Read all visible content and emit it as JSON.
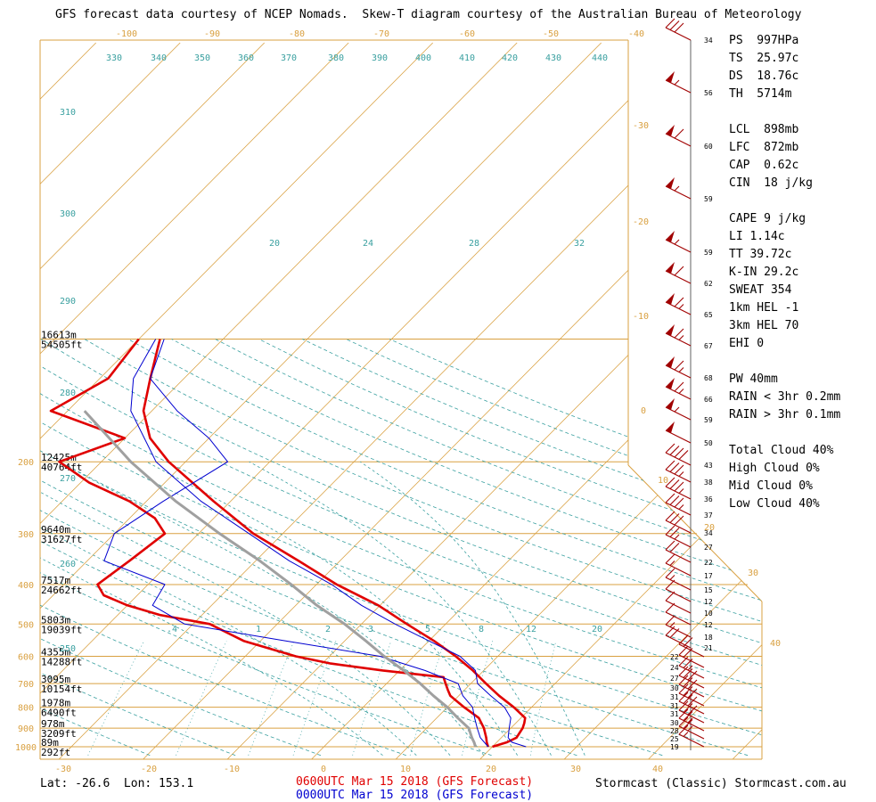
{
  "header": "GFS forecast data courtesy of NCEP Nomads.  Skew-T diagram courtesy of the Australian Bureau of Meteorology",
  "colors": {
    "grid": "#d9a040",
    "dashed": "#3aa0a0",
    "temp_now": "#e00000",
    "temp_prev": "#0000d0",
    "parcel": "#a0a0a0"
  },
  "chart_data": {
    "type": "line",
    "title": "",
    "xlabel": "",
    "ylabel": "",
    "x_ticks_bottom": [
      "-30",
      "-20",
      "-10",
      "0",
      "10",
      "20",
      "30",
      "40"
    ],
    "x_ticks_top": [
      "-100",
      "-90",
      "-80",
      "-70",
      "-60",
      "-50",
      "-40"
    ],
    "pressure_ticks": [
      "200",
      "300",
      "400",
      "500",
      "600",
      "700",
      "800",
      "900",
      "1000"
    ],
    "skewed_ticks_right": [
      "-30",
      "-20",
      "-10",
      "0",
      "10",
      "20",
      "30",
      "40"
    ],
    "theta_labels": [
      "330",
      "340",
      "350",
      "360",
      "370",
      "380",
      "390",
      "400",
      "410",
      "420",
      "430",
      "440",
      "310",
      "300",
      "290",
      "280",
      "270",
      "260",
      "250"
    ],
    "theta_e_labels": [
      "20",
      "24",
      "28",
      "32"
    ],
    "mixing_ratio_labels": [
      ".4",
      "1",
      "2",
      "3",
      "5",
      "8",
      "12",
      "20"
    ],
    "height_labels": [
      {
        "p": 100,
        "m": "16613m",
        "ft": "54505ft"
      },
      {
        "p": 200,
        "m": "12425m",
        "ft": "40764ft"
      },
      {
        "p": 300,
        "m": "9640m",
        "ft": "31627ft"
      },
      {
        "p": 400,
        "m": "7517m",
        "ft": "24662ft"
      },
      {
        "p": 500,
        "m": "5803m",
        "ft": "19039ft"
      },
      {
        "p": 600,
        "m": "4355m",
        "ft": "14288ft"
      },
      {
        "p": 700,
        "m": "3095m",
        "ft": "10154ft"
      },
      {
        "p": 800,
        "m": "1978m",
        "ft": "6490ft"
      },
      {
        "p": 900,
        "m": "978m",
        "ft": "3209ft"
      },
      {
        "p": 1000,
        "m": "89m",
        "ft": "292ft"
      }
    ],
    "wind_speeds": [
      "34",
      "56",
      "60",
      "59",
      "59",
      "62",
      "65",
      "67",
      "68",
      "66",
      "59",
      "50",
      "43",
      "38",
      "36",
      "37",
      "34",
      "27",
      "22",
      "17",
      "15",
      "12",
      "10",
      "12",
      "18",
      "21",
      "22",
      "24",
      "27",
      "30",
      "31",
      "31",
      "31",
      "30",
      "28",
      "25",
      "19"
    ],
    "series": [
      {
        "name": "0600UTC Mar 15 2018 (GFS Forecast)",
        "kind": "temperature",
        "color": "#e00000",
        "points": [
          [
            1000,
            20.0
          ],
          [
            975,
            21.2
          ],
          [
            950,
            21.8
          ],
          [
            925,
            21.6
          ],
          [
            900,
            21.4
          ],
          [
            875,
            21.0
          ],
          [
            850,
            20.5
          ],
          [
            800,
            17.9
          ],
          [
            750,
            14.8
          ],
          [
            700,
            11.8
          ],
          [
            650,
            8.7
          ],
          [
            600,
            5.0
          ],
          [
            550,
            0.6
          ],
          [
            500,
            -4.6
          ],
          [
            450,
            -10.2
          ],
          [
            400,
            -17.6
          ],
          [
            350,
            -24.9
          ],
          [
            300,
            -33.5
          ],
          [
            250,
            -42.0
          ],
          [
            200,
            -52.0
          ],
          [
            175,
            -57.0
          ],
          [
            150,
            -61.0
          ],
          [
            125,
            -64.0
          ],
          [
            100,
            -67.5
          ]
        ]
      },
      {
        "name": "0600UTC Mar 15 2018 (GFS Forecast)",
        "kind": "dewpoint",
        "color": "#e00000",
        "points": [
          [
            1000,
            19.5
          ],
          [
            975,
            18.8
          ],
          [
            950,
            18.2
          ],
          [
            900,
            16.8
          ],
          [
            850,
            15.0
          ],
          [
            800,
            12.0
          ],
          [
            750,
            9.0
          ],
          [
            725,
            8.0
          ],
          [
            700,
            7.0
          ],
          [
            675,
            6.0
          ],
          [
            650,
            -2.0
          ],
          [
            625,
            -9.0
          ],
          [
            600,
            -14.0
          ],
          [
            550,
            -22.0
          ],
          [
            500,
            -28.0
          ],
          [
            475,
            -35.0
          ],
          [
            450,
            -40.0
          ],
          [
            425,
            -44.0
          ],
          [
            400,
            -46.0
          ],
          [
            350,
            -45.0
          ],
          [
            300,
            -44.0
          ],
          [
            275,
            -47.0
          ],
          [
            250,
            -52.0
          ],
          [
            225,
            -59.0
          ],
          [
            200,
            -65.0
          ],
          [
            175,
            -60.0
          ],
          [
            150,
            -72.0
          ],
          [
            125,
            -69.0
          ],
          [
            100,
            -70.0
          ]
        ]
      },
      {
        "name": "0000UTC Mar 15 2018 (GFS Forecast)",
        "kind": "temperature",
        "color": "#0000d0",
        "points": [
          [
            1000,
            24.0
          ],
          [
            975,
            21.8
          ],
          [
            950,
            20.8
          ],
          [
            900,
            19.8
          ],
          [
            850,
            18.8
          ],
          [
            800,
            16.8
          ],
          [
            750,
            13.8
          ],
          [
            700,
            10.8
          ],
          [
            650,
            9.0
          ],
          [
            600,
            5.5
          ],
          [
            550,
            0.0
          ],
          [
            500,
            -6.0
          ],
          [
            450,
            -12.2
          ],
          [
            400,
            -18.2
          ],
          [
            350,
            -26.0
          ],
          [
            300,
            -34.0
          ],
          [
            250,
            -43.5
          ],
          [
            200,
            -53.5
          ],
          [
            150,
            -62.5
          ],
          [
            125,
            -66.0
          ],
          [
            100,
            -68.0
          ]
        ]
      },
      {
        "name": "0000UTC Mar 15 2018 (GFS Forecast)",
        "kind": "dewpoint",
        "color": "#0000d0",
        "points": [
          [
            1000,
            19.5
          ],
          [
            950,
            17.5
          ],
          [
            900,
            16.0
          ],
          [
            850,
            14.5
          ],
          [
            800,
            13.0
          ],
          [
            750,
            10.5
          ],
          [
            700,
            8.5
          ],
          [
            650,
            3.0
          ],
          [
            600,
            -4.0
          ],
          [
            550,
            -17.0
          ],
          [
            500,
            -31.0
          ],
          [
            450,
            -37.0
          ],
          [
            400,
            -38.0
          ],
          [
            350,
            -48.0
          ],
          [
            300,
            -50.0
          ],
          [
            250,
            -48.0
          ],
          [
            200,
            -45.0
          ],
          [
            175,
            -50.0
          ],
          [
            150,
            -57.0
          ],
          [
            125,
            -64.0
          ],
          [
            100,
            -67.0
          ]
        ]
      },
      {
        "name": "",
        "kind": "parcel",
        "color": "#a0a0a0",
        "points": [
          [
            1000,
            18.0
          ],
          [
            975,
            17.3
          ],
          [
            950,
            16.5
          ],
          [
            900,
            15.0
          ],
          [
            850,
            12.5
          ],
          [
            800,
            10.0
          ],
          [
            750,
            7.0
          ],
          [
            700,
            4.0
          ],
          [
            650,
            0.5
          ],
          [
            600,
            -3.5
          ],
          [
            550,
            -7.5
          ],
          [
            500,
            -12.0
          ],
          [
            450,
            -17.5
          ],
          [
            400,
            -23.0
          ],
          [
            350,
            -29.5
          ],
          [
            300,
            -37.5
          ],
          [
            250,
            -46.5
          ],
          [
            200,
            -56.5
          ],
          [
            170,
            -63.0
          ],
          [
            150,
            -68.0
          ]
        ]
      }
    ]
  },
  "info": [
    {
      "key": "PS",
      "val": "997HPa"
    },
    {
      "key": "TS",
      "val": "25.97c"
    },
    {
      "key": "DS",
      "val": "18.76c"
    },
    {
      "key": "TH",
      "val": "5714m"
    },
    {
      "key": "LCL",
      "val": "898mb"
    },
    {
      "key": "LFC",
      "val": "872mb"
    },
    {
      "key": "CAP",
      "val": "0.62c"
    },
    {
      "key": "CIN",
      "val": "18 j/kg"
    },
    {
      "key": "CAPE",
      "val": "9 j/kg"
    },
    {
      "key": "LI",
      "val": "1.14c"
    },
    {
      "key": "TT",
      "val": "39.72c"
    },
    {
      "key": "K-IN",
      "val": "29.2c"
    },
    {
      "key": "SWEAT",
      "val": "354"
    },
    {
      "key": "1km HEL",
      "val": "-1"
    },
    {
      "key": "3km HEL",
      "val": "70"
    },
    {
      "key": "EHI",
      "val": "0"
    },
    {
      "key": "PW",
      "val": "40mm"
    },
    {
      "key": "RAIN < 3hr",
      "val": "0.2mm"
    },
    {
      "key": "RAIN > 3hr",
      "val": "0.1mm"
    },
    {
      "key": "Total Cloud",
      "val": "40%"
    },
    {
      "key": "High Cloud",
      "val": "0%"
    },
    {
      "key": "Mid Cloud",
      "val": "0%"
    },
    {
      "key": "Low Cloud",
      "val": "40%"
    }
  ],
  "footer": {
    "latlon": "Lat: -26.6  Lon: 153.1",
    "run_red": "0600UTC Mar 15 2018 (GFS Forecast)",
    "run_blue": "0000UTC Mar 15 2018 (GFS Forecast)",
    "credit": "Stormcast (Classic) Stormcast.com.au"
  }
}
